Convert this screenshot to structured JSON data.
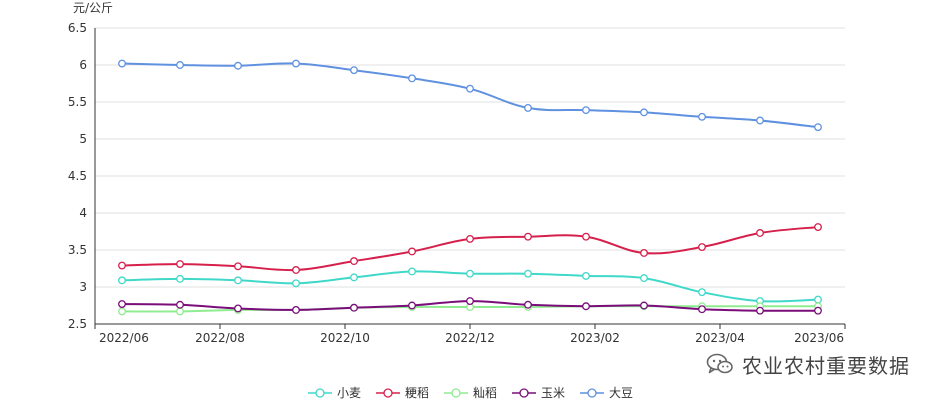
{
  "chart_data": {
    "type": "line",
    "y_unit": "元/公斤",
    "ylim": [
      2.5,
      6.5
    ],
    "y_ticks": [
      "6.5",
      "6",
      "5.5",
      "5",
      "4.5",
      "4",
      "3.5",
      "3",
      "2.5"
    ],
    "x": [
      "2022/06",
      "2022/07",
      "2022/08",
      "2022/09",
      "2022/10",
      "2022/11",
      "2022/12",
      "2023/01",
      "2023/02",
      "2023/03",
      "2023/04",
      "2023/05",
      "2023/06"
    ],
    "x_tick_labels": [
      "2022/06",
      "2022/08",
      "2022/10",
      "2022/12",
      "2023/02",
      "2023/04",
      "2023/06"
    ],
    "grid": true,
    "legend_position": "bottom-center",
    "series": [
      {
        "name": "小麦",
        "color": "#40d8c8",
        "values": [
          3.09,
          3.11,
          3.09,
          3.05,
          3.13,
          3.21,
          3.18,
          3.18,
          3.15,
          3.12,
          2.93,
          2.81,
          2.83
        ]
      },
      {
        "name": "粳稻",
        "color": "#d6204c",
        "values": [
          3.29,
          3.31,
          3.28,
          3.23,
          3.35,
          3.48,
          3.65,
          3.68,
          3.68,
          3.46,
          3.54,
          3.73,
          3.81
        ]
      },
      {
        "name": "籼稻",
        "color": "#90ec90",
        "values": [
          2.67,
          2.67,
          2.69,
          2.69,
          2.72,
          2.73,
          2.73,
          2.73,
          2.74,
          2.74,
          2.74,
          2.74,
          2.74
        ]
      },
      {
        "name": "玉米",
        "color": "#7a0d7a",
        "values": [
          2.77,
          2.76,
          2.71,
          2.69,
          2.72,
          2.75,
          2.81,
          2.76,
          2.74,
          2.75,
          2.7,
          2.68,
          2.68
        ]
      },
      {
        "name": "大豆",
        "color": "#5f91e0",
        "values": [
          6.02,
          6.0,
          5.99,
          6.02,
          5.93,
          5.82,
          5.68,
          5.42,
          5.39,
          5.36,
          5.3,
          5.25,
          5.16
        ]
      }
    ]
  },
  "watermark": {
    "text": "农业农村重要数据",
    "icon": "wechat-icon"
  }
}
